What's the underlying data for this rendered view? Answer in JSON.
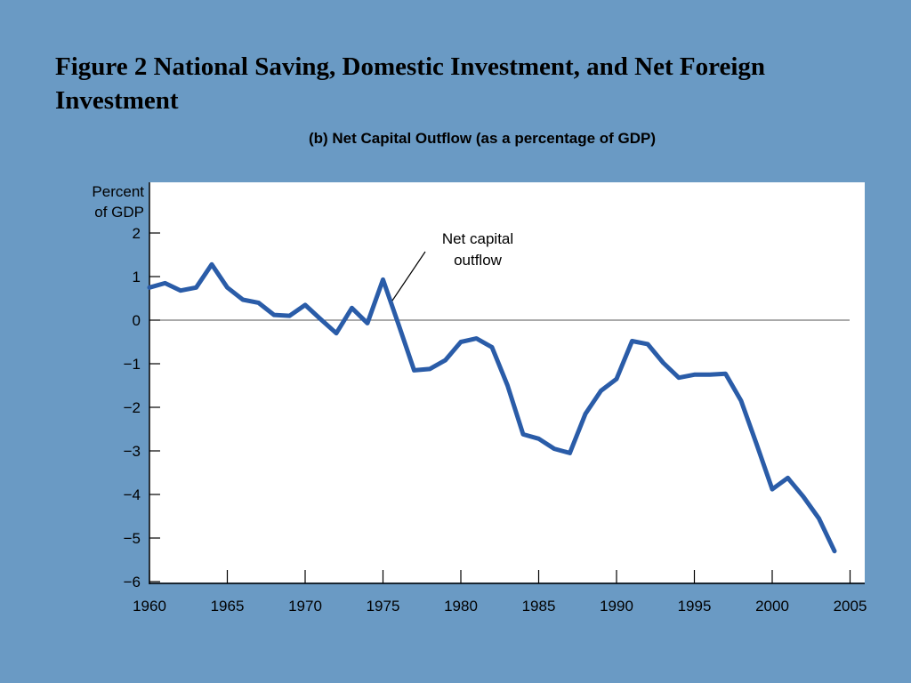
{
  "title": "Figure 2 National Saving, Domestic Investment, and Net Foreign Investment",
  "chart_data": {
    "type": "line",
    "subtitle": "(b) Net Capital Outflow (as a percentage of GDP)",
    "ylabel_line1": "Percent",
    "ylabel_line2": "of GDP",
    "annotation_line1": "Net capital",
    "annotation_line2": "outflow",
    "xlim": [
      1960,
      2005
    ],
    "ylim": [
      -6,
      2
    ],
    "x_ticks": [
      1960,
      1965,
      1970,
      1975,
      1980,
      1985,
      1990,
      1995,
      2000,
      2005
    ],
    "y_ticks": [
      2,
      1,
      0,
      -1,
      -2,
      -3,
      -4,
      -5,
      -6
    ],
    "y_tick_labels": [
      "2",
      "1",
      "0",
      "−1",
      "−2",
      "−3",
      "−4",
      "−5",
      "−6"
    ],
    "zero_line": true,
    "series": [
      {
        "color": "#2a5ca8",
        "x": [
          1960,
          1961,
          1962,
          1963,
          1964,
          1965,
          1966,
          1967,
          1968,
          1969,
          1970,
          1971,
          1972,
          1973,
          1974,
          1975,
          1976,
          1977,
          1978,
          1979,
          1980,
          1981,
          1982,
          1983,
          1984,
          1985,
          1986,
          1987,
          1988,
          1989,
          1990,
          1991,
          1992,
          1993,
          1994,
          1995,
          1996,
          1997,
          1998,
          1999,
          2000,
          2001,
          2002,
          2003,
          2004
        ],
        "y": [
          0.75,
          0.85,
          0.68,
          0.75,
          1.28,
          0.75,
          0.47,
          0.4,
          0.12,
          0.1,
          0.35,
          0.02,
          -0.3,
          0.28,
          -0.07,
          0.93,
          -0.1,
          -1.15,
          -1.12,
          -0.92,
          -0.5,
          -0.42,
          -0.62,
          -1.5,
          -2.62,
          -2.72,
          -2.95,
          -3.05,
          -2.15,
          -1.62,
          -1.35,
          -0.48,
          -0.55,
          -0.98,
          -1.32,
          -1.25,
          -1.25,
          -1.23,
          -1.85,
          -2.85,
          -3.88,
          -3.62,
          -4.05,
          -4.55,
          -5.3
        ]
      }
    ]
  }
}
